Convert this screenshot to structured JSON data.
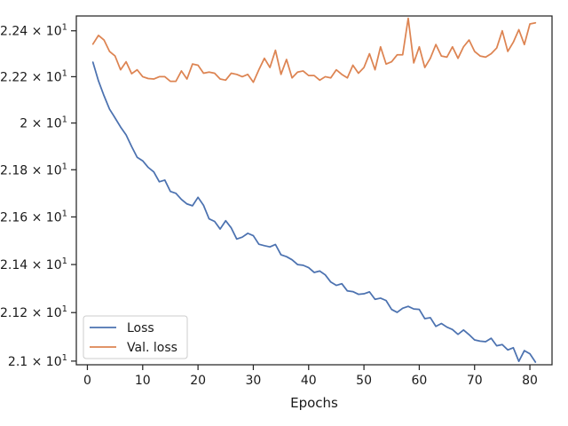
{
  "chart_data": {
    "type": "line",
    "title": "",
    "xlabel": "Epochs",
    "ylabel": "",
    "xlim": [
      -2.0,
      84.0
    ],
    "ylim": [
      2.0985,
      2.2465
    ],
    "xticks": [
      0,
      10,
      20,
      30,
      40,
      50,
      60,
      70,
      80
    ],
    "yticks": [
      {
        "value": 2.1,
        "mantissa": "2.1",
        "base": "10",
        "exponent": "1"
      },
      {
        "value": 2.12,
        "mantissa": "2.12",
        "base": "10",
        "exponent": "1"
      },
      {
        "value": 2.14,
        "mantissa": "2.14",
        "base": "10",
        "exponent": "1"
      },
      {
        "value": 2.16,
        "mantissa": "2.16",
        "base": "10",
        "exponent": "1"
      },
      {
        "value": 2.18,
        "mantissa": "2.18",
        "base": "10",
        "exponent": "1"
      },
      {
        "value": 2.2,
        "mantissa": "2",
        "base": "10",
        "exponent": "1"
      },
      {
        "value": 2.22,
        "mantissa": "2.22",
        "base": "10",
        "exponent": "1"
      },
      {
        "value": 2.24,
        "mantissa": "2.24",
        "base": "10",
        "exponent": "1"
      }
    ],
    "times_sign": "×",
    "y_scale": "log",
    "grid": false,
    "legend_position": "lower-left",
    "series": [
      {
        "name": "Loss",
        "color": "#4c72b0",
        "x_start": 1,
        "values": [
          2.2263,
          2.2182,
          2.2118,
          2.206,
          2.2022,
          2.1983,
          2.1949,
          2.1899,
          2.1853,
          2.1838,
          2.181,
          2.1791,
          2.1749,
          2.1756,
          2.1708,
          2.17,
          2.1674,
          2.1655,
          2.1647,
          2.1683,
          2.1649,
          2.1592,
          2.1581,
          2.1549,
          2.1584,
          2.1554,
          2.1507,
          2.1515,
          2.1531,
          2.1521,
          2.1485,
          2.1479,
          2.1474,
          2.1484,
          2.1441,
          2.1433,
          2.142,
          2.14,
          2.1397,
          2.1387,
          2.1367,
          2.1373,
          2.1357,
          2.1327,
          2.1313,
          2.132,
          2.129,
          2.1287,
          2.1276,
          2.1278,
          2.1286,
          2.1255,
          2.126,
          2.125,
          2.1213,
          2.1201,
          2.1218,
          2.1226,
          2.1215,
          2.1213,
          2.1175,
          2.1179,
          2.1143,
          2.1155,
          2.114,
          2.113,
          2.111,
          2.1128,
          2.1109,
          2.1087,
          2.1082,
          2.108,
          2.1094,
          2.1063,
          2.1068,
          2.1046,
          2.1055,
          2.0999,
          2.1043,
          2.103,
          2.0996
        ]
      },
      {
        "name": "Val. loss",
        "color": "#dd8452",
        "x_start": 1,
        "values": [
          2.2342,
          2.238,
          2.236,
          2.231,
          2.229,
          2.223,
          2.2265,
          2.2213,
          2.223,
          2.22,
          2.2192,
          2.219,
          2.22,
          2.22,
          2.218,
          2.218,
          2.2225,
          2.219,
          2.2255,
          2.225,
          2.2215,
          2.222,
          2.2215,
          2.219,
          2.2185,
          2.2215,
          2.221,
          2.22,
          2.221,
          2.2176,
          2.223,
          2.228,
          2.224,
          2.2315,
          2.221,
          2.2275,
          2.2195,
          2.222,
          2.2225,
          2.2205,
          2.2205,
          2.2185,
          2.22,
          2.2195,
          2.223,
          2.221,
          2.2195,
          2.225,
          2.2215,
          2.224,
          2.23,
          2.223,
          2.233,
          2.2255,
          2.2265,
          2.2295,
          2.2295,
          2.2455,
          2.226,
          2.233,
          2.224,
          2.228,
          2.234,
          2.229,
          2.2285,
          2.233,
          2.228,
          2.233,
          2.236,
          2.231,
          2.229,
          2.2285,
          2.23,
          2.2325,
          2.24,
          2.231,
          2.235,
          2.2405,
          2.234,
          2.243,
          2.2435
        ]
      }
    ]
  }
}
